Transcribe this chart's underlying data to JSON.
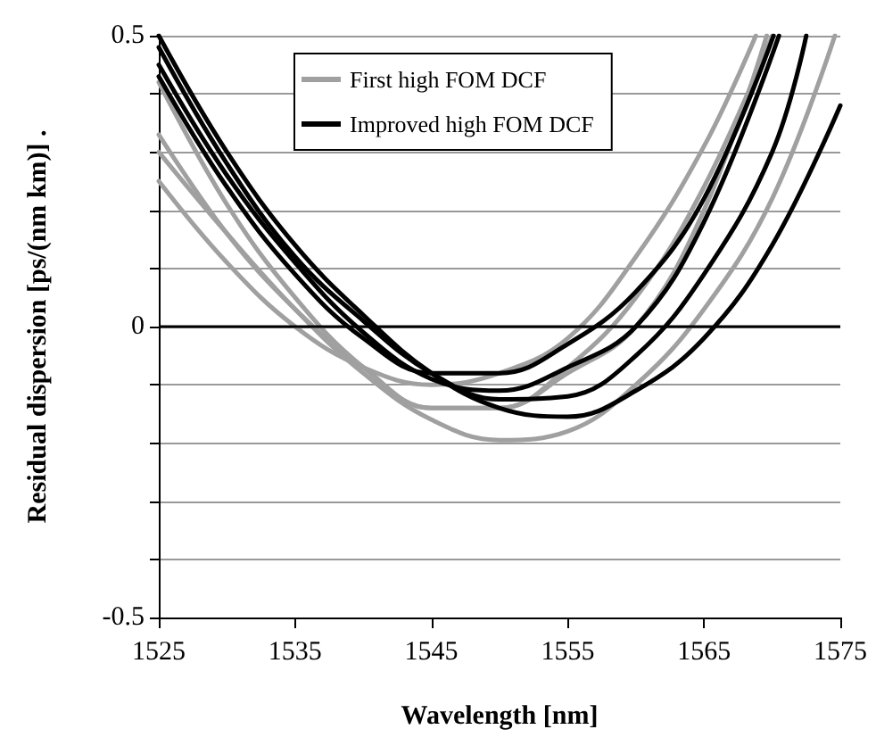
{
  "chart_data": {
    "type": "line",
    "xlabel": "Wavelength [nm]",
    "ylabel": "Residual dispersion [ps/(nm km)] .",
    "xlim": [
      1525,
      1575
    ],
    "xticks": [
      1525,
      1535,
      1545,
      1555,
      1565,
      1575
    ],
    "ylim": [
      -0.5,
      0.5
    ],
    "yticks": [
      -0.5,
      {
        "value": -0.4,
        "label": null
      },
      {
        "value": -0.3,
        "label": null
      },
      {
        "value": -0.2,
        "label": null
      },
      {
        "value": -0.1,
        "label": null
      },
      0,
      {
        "value": 0.1,
        "label": null
      },
      {
        "value": 0.2,
        "label": null
      },
      {
        "value": 0.3,
        "label": null
      },
      {
        "value": 0.4,
        "label": null
      },
      0.5
    ],
    "grid": "y",
    "legend": "top",
    "marker": "none",
    "line_style": "solid",
    "ref_lines": [
      {
        "axis": "y",
        "value": 0,
        "label": null,
        "color": "#000000"
      }
    ],
    "series": [
      {
        "name": "First high FOM DCF",
        "color": "#a0a0a0",
        "x": [
          1525,
          1530,
          1535,
          1540,
          1545,
          1550,
          1555,
          1560,
          1565,
          1568.8
        ],
        "values": [
          0.25,
          0.11,
          0.0,
          -0.07,
          -0.1,
          -0.08,
          -0.02,
          0.12,
          0.31,
          0.5
        ]
      },
      {
        "color": "#a0a0a0",
        "x": [
          1525,
          1530,
          1535,
          1540,
          1545,
          1550,
          1555,
          1560,
          1565,
          1569.6
        ],
        "values": [
          0.33,
          0.16,
          0.03,
          -0.07,
          -0.14,
          -0.14,
          -0.08,
          0.0,
          0.2,
          0.5
        ]
      },
      {
        "color": "#a0a0a0",
        "x": [
          1525,
          1530,
          1535,
          1540,
          1545,
          1550,
          1555,
          1560,
          1565,
          1570
        ],
        "values": [
          0.42,
          0.21,
          0.05,
          -0.07,
          -0.14,
          -0.14,
          -0.07,
          0.05,
          0.24,
          0.5
        ]
      },
      {
        "color": "#a0a0a0",
        "x": [
          1525,
          1530,
          1535,
          1540,
          1545,
          1550,
          1555,
          1560,
          1565,
          1570,
          1574.6
        ],
        "values": [
          0.3,
          0.16,
          0.03,
          -0.08,
          -0.16,
          -0.195,
          -0.18,
          -0.1,
          0.03,
          0.22,
          0.5
        ]
      },
      {
        "name": "Improved high FOM DCF",
        "color": "#000000",
        "x": [
          1525,
          1530,
          1535,
          1540,
          1545,
          1550,
          1555,
          1560,
          1565,
          1570.1
        ],
        "values": [
          0.43,
          0.24,
          0.09,
          -0.02,
          -0.08,
          -0.08,
          -0.03,
          0.06,
          0.22,
          0.5
        ]
      },
      {
        "color": "#000000",
        "x": [
          1525,
          1530,
          1535,
          1540,
          1545,
          1550,
          1555,
          1560,
          1565,
          1570.5
        ],
        "values": [
          0.45,
          0.26,
          0.11,
          -0.01,
          -0.09,
          -0.11,
          -0.07,
          0.0,
          0.18,
          0.5
        ]
      },
      {
        "color": "#000000",
        "x": [
          1525,
          1530,
          1535,
          1540,
          1545,
          1550,
          1555,
          1560,
          1565,
          1570,
          1572.5
        ],
        "values": [
          0.48,
          0.28,
          0.12,
          0.01,
          -0.08,
          -0.125,
          -0.12,
          -0.05,
          0.09,
          0.3,
          0.5
        ]
      },
      {
        "color": "#000000",
        "x": [
          1525,
          1530,
          1535,
          1540,
          1545,
          1550,
          1555,
          1560,
          1565,
          1570,
          1575
        ],
        "values": [
          0.5,
          0.3,
          0.14,
          0.02,
          -0.08,
          -0.14,
          -0.155,
          -0.11,
          -0.02,
          0.14,
          0.38
        ]
      }
    ]
  }
}
